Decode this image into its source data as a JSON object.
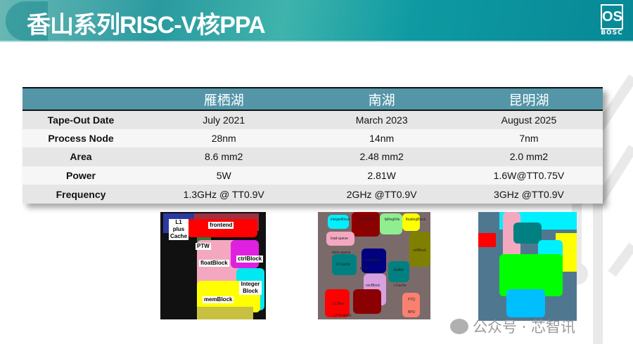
{
  "slide": {
    "title": "香山系列RISC-V核PPA",
    "logo_text": "OS",
    "logo_caption": "BOSC"
  },
  "table": {
    "headers": [
      "",
      "雁栖湖",
      "南湖",
      "昆明湖"
    ],
    "rows": [
      {
        "label": "Tape-Out Date",
        "values": [
          "July 2021",
          "March 2023",
          "August 2025"
        ]
      },
      {
        "label": "Process Node",
        "values": [
          "28nm",
          "14nm",
          "7nm"
        ]
      },
      {
        "label": "Area",
        "values": [
          "8.6 mm2",
          "2.48 mm2",
          "2.0 mm2"
        ]
      },
      {
        "label": "Power",
        "values": [
          "5W",
          "2.81W",
          "1.6W@TT0.75V"
        ]
      },
      {
        "label": "Frequency",
        "values": [
          "1.3GHz @ TT0.9V",
          "2GHz @TT0.9V",
          "3GHz @TT0.9V"
        ]
      }
    ]
  },
  "die_yanqihu": {
    "labels": [
      "L1 plus Cache",
      "frontend",
      "PTW",
      "ctrlBlock",
      "floatBlock",
      "Integer Block",
      "memBlock"
    ]
  },
  "die_nanhu": {
    "labels": [
      "integerBlock",
      "intRegFile",
      "fpRegFile",
      "floatingBlock",
      "load-queue",
      "ctrlBlock",
      "store-queue",
      "vecRegFile",
      "D-Cache",
      "vecBlock",
      "PTW",
      "I-Cache",
      "ibuffer",
      "L2 Slice",
      "L2 Prefetch",
      "FTQ",
      "BPU"
    ]
  },
  "watermark": "公众号 · 芯智讯"
}
